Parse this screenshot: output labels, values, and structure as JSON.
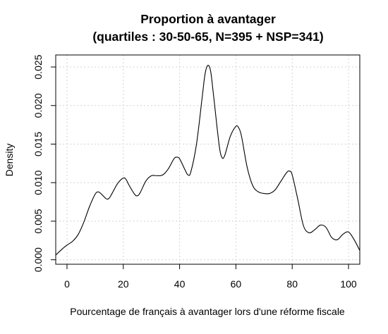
{
  "chart_data": {
    "type": "line",
    "title_line1": "Proportion à avantager",
    "title_line2": "(quartiles : 30-50-65, N=395 + NSP=341)",
    "xlabel": "Pourcentage de français à avantager lors d'une réforme fiscale",
    "ylabel": "Density",
    "xlim": [
      -4,
      104
    ],
    "ylim": [
      -0.00058,
      0.02656
    ],
    "x_ticks": [
      0,
      20,
      40,
      60,
      80,
      100
    ],
    "x_tick_labels": [
      "0",
      "20",
      "40",
      "60",
      "80",
      "100"
    ],
    "y_ticks": [
      0.0,
      0.005,
      0.01,
      0.015,
      0.02,
      0.025
    ],
    "y_tick_labels": [
      "0.000",
      "0.005",
      "0.010",
      "0.015",
      "0.020",
      "0.025"
    ],
    "grid": true,
    "series": [
      {
        "x": [
          -4,
          -2,
          0,
          2,
          4,
          6,
          8,
          10,
          11,
          12,
          14,
          15,
          16,
          18,
          20,
          21,
          22,
          24,
          25,
          26,
          28,
          30,
          32,
          34,
          36,
          38,
          39,
          40,
          42,
          43,
          44,
          46,
          48,
          49,
          50,
          51,
          52,
          54,
          55,
          56,
          58,
          60,
          61,
          62,
          64,
          66,
          68,
          70,
          72,
          74,
          76,
          78,
          79,
          80,
          82,
          84,
          86,
          88,
          90,
          92,
          94,
          96,
          98,
          100,
          102,
          104
        ],
        "y": [
          0.0006,
          0.0013,
          0.0019,
          0.0024,
          0.0033,
          0.0049,
          0.0069,
          0.0085,
          0.0088,
          0.0086,
          0.0079,
          0.008,
          0.0086,
          0.0099,
          0.0106,
          0.0104,
          0.0097,
          0.0085,
          0.0083,
          0.0087,
          0.0102,
          0.0109,
          0.0109,
          0.011,
          0.0118,
          0.0131,
          0.0133,
          0.0131,
          0.0116,
          0.011,
          0.0114,
          0.015,
          0.021,
          0.024,
          0.0252,
          0.0245,
          0.0215,
          0.015,
          0.0133,
          0.0135,
          0.016,
          0.0173,
          0.0171,
          0.016,
          0.012,
          0.0096,
          0.0088,
          0.0086,
          0.0086,
          0.0091,
          0.0102,
          0.0113,
          0.0115,
          0.011,
          0.0078,
          0.0044,
          0.0035,
          0.0039,
          0.0045,
          0.0042,
          0.0029,
          0.0026,
          0.0033,
          0.0036,
          0.0026,
          0.0012
        ]
      }
    ]
  }
}
